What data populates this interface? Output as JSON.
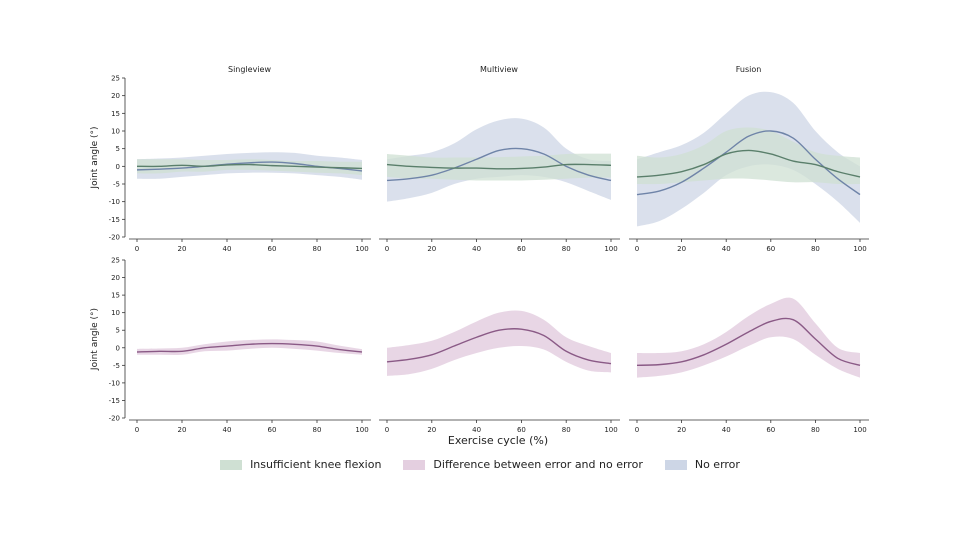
{
  "colors": {
    "green_line": "#5a7f6b",
    "green_fill": "#cfe0d3",
    "purple_line": "#8a5a86",
    "purple_fill": "#e4cfe0",
    "blue_line": "#6f84a8",
    "blue_fill": "#cdd6e6",
    "axis": "#333333"
  },
  "figure": {
    "xlabel": "Exercise cycle (%)",
    "ylabel": "Joint angle (°)"
  },
  "legend": [
    {
      "label": "Insufficient knee flexion",
      "color": "#cfe0d3"
    },
    {
      "label": "Difference between error and no error",
      "color": "#e4cfe0"
    },
    {
      "label": "No error",
      "color": "#cdd6e6"
    }
  ],
  "chart_data": [
    {
      "type": "line",
      "panel": "top-left",
      "title": "Singleview",
      "x": [
        0,
        10,
        20,
        30,
        40,
        50,
        60,
        70,
        80,
        90,
        100
      ],
      "xlim": [
        0,
        100
      ],
      "xticks": [
        0,
        20,
        40,
        60,
        80,
        100
      ],
      "ylim": [
        -20,
        25
      ],
      "yticks": [
        -20,
        -15,
        -10,
        -5,
        0,
        5,
        10,
        15,
        20,
        25
      ],
      "ylabel": "Joint angle (°)",
      "series": [
        {
          "role": "no-error",
          "mean": [
            -1,
            -0.8,
            -0.5,
            0,
            0.6,
            1,
            1.2,
            0.8,
            0,
            -0.6,
            -1.3
          ],
          "lower": [
            -3.5,
            -3.5,
            -3,
            -2.5,
            -2,
            -1.8,
            -1.8,
            -2,
            -2.5,
            -3,
            -3.8
          ],
          "upper": [
            2,
            2.2,
            2.5,
            3,
            3.5,
            3.8,
            4,
            3.8,
            3,
            2.5,
            1.8
          ]
        },
        {
          "role": "insufficient-knee-flexion",
          "mean": [
            0,
            0,
            0.3,
            0,
            0.4,
            0.5,
            0.2,
            0,
            -0.2,
            -0.4,
            -0.6
          ],
          "lower": [
            -2,
            -2,
            -1.5,
            -1.5,
            -1,
            -1,
            -1.2,
            -1.5,
            -1.8,
            -2,
            -2.5
          ],
          "upper": [
            2,
            2,
            2,
            1.8,
            1.8,
            2,
            1.8,
            1.5,
            1.5,
            1.3,
            1.3
          ]
        }
      ]
    },
    {
      "type": "line",
      "panel": "top-middle",
      "title": "Multiview",
      "x": [
        0,
        10,
        20,
        30,
        40,
        50,
        60,
        70,
        80,
        90,
        100
      ],
      "xlim": [
        0,
        100
      ],
      "xticks": [
        0,
        20,
        40,
        60,
        80,
        100
      ],
      "ylim": [
        -20,
        25
      ],
      "yticks": [
        -20,
        -15,
        -10,
        -5,
        0,
        5,
        10,
        15,
        20,
        25
      ],
      "series": [
        {
          "role": "no-error",
          "mean": [
            -4,
            -3.5,
            -2.5,
            -0.5,
            2,
            4.5,
            5,
            3.5,
            0,
            -2.5,
            -4
          ],
          "lower": [
            -10,
            -9,
            -7.5,
            -5,
            -3.5,
            -3,
            -2.5,
            -3,
            -4.5,
            -7,
            -9.5
          ],
          "upper": [
            2,
            3,
            4,
            6.5,
            10.5,
            13,
            13.5,
            11,
            5,
            2,
            1.5
          ]
        },
        {
          "role": "insufficient-knee-flexion",
          "mean": [
            0.5,
            0,
            -0.3,
            -0.5,
            -0.5,
            -0.7,
            -0.6,
            -0.2,
            0.5,
            0.5,
            0.3
          ],
          "lower": [
            -3,
            -3.5,
            -3.5,
            -3.8,
            -4,
            -4,
            -4,
            -3.8,
            -3.5,
            -3.2,
            -3.2
          ],
          "upper": [
            3.5,
            3,
            2.5,
            2.5,
            2.5,
            2.6,
            2.8,
            3,
            3.5,
            3.6,
            3.6
          ]
        }
      ]
    },
    {
      "type": "line",
      "panel": "top-right",
      "title": "Fusion",
      "x": [
        0,
        10,
        20,
        30,
        40,
        50,
        60,
        70,
        80,
        90,
        100
      ],
      "xlim": [
        0,
        100
      ],
      "xticks": [
        0,
        20,
        40,
        60,
        80,
        100
      ],
      "ylim": [
        -20,
        25
      ],
      "yticks": [
        -20,
        -15,
        -10,
        -5,
        0,
        5,
        10,
        15,
        20,
        25
      ],
      "series": [
        {
          "role": "no-error",
          "mean": [
            -8,
            -7,
            -4.5,
            -0.5,
            4,
            8.5,
            10,
            8,
            2,
            -3.5,
            -8
          ],
          "lower": [
            -17,
            -15.5,
            -12,
            -7.5,
            -2.5,
            0,
            0.5,
            -1,
            -5,
            -10,
            -16
          ],
          "upper": [
            2,
            4,
            6,
            9.5,
            15,
            20,
            21,
            18,
            10,
            4,
            0
          ]
        },
        {
          "role": "insufficient-knee-flexion",
          "mean": [
            -3,
            -2.5,
            -1.5,
            0.5,
            3.5,
            4.5,
            3.5,
            1.5,
            0.5,
            -1.5,
            -3
          ],
          "lower": [
            -5,
            -5,
            -4.5,
            -4,
            -3.5,
            -3.5,
            -4,
            -4.5,
            -4.5,
            -5,
            -5
          ],
          "upper": [
            3,
            2.5,
            3.5,
            6,
            10,
            11,
            10,
            7,
            4,
            3,
            2.5
          ]
        }
      ]
    },
    {
      "type": "line",
      "panel": "bottom-left",
      "x": [
        0,
        10,
        20,
        30,
        40,
        50,
        60,
        70,
        80,
        90,
        100
      ],
      "xlim": [
        0,
        100
      ],
      "xticks": [
        0,
        20,
        40,
        60,
        80,
        100
      ],
      "ylim": [
        -20,
        25
      ],
      "yticks": [
        -20,
        -15,
        -10,
        -5,
        0,
        5,
        10,
        15,
        20,
        25
      ],
      "ylabel": "Joint angle (°)",
      "series": [
        {
          "role": "difference",
          "mean": [
            -1.2,
            -1,
            -1,
            0,
            0.5,
            1,
            1.2,
            1,
            0.5,
            -0.5,
            -1.2
          ],
          "lower": [
            -2,
            -2,
            -2,
            -1,
            -0.8,
            -0.3,
            0,
            -0.3,
            -0.8,
            -1.5,
            -2
          ],
          "upper": [
            -0.3,
            -0.2,
            0,
            1,
            1.8,
            2.2,
            2.4,
            2.2,
            1.8,
            0.6,
            -0.4
          ]
        }
      ]
    },
    {
      "type": "line",
      "panel": "bottom-middle",
      "x": [
        0,
        10,
        20,
        30,
        40,
        50,
        60,
        70,
        80,
        90,
        100
      ],
      "xlim": [
        0,
        100
      ],
      "xticks": [
        0,
        20,
        40,
        60,
        80,
        100
      ],
      "ylim": [
        -20,
        25
      ],
      "yticks": [
        -20,
        -15,
        -10,
        -5,
        0,
        5,
        10,
        15,
        20,
        25
      ],
      "series": [
        {
          "role": "difference",
          "mean": [
            -4,
            -3.3,
            -2,
            0.5,
            3,
            5,
            5.3,
            3.5,
            -1,
            -3.5,
            -4.5
          ],
          "lower": [
            -8,
            -7.5,
            -6,
            -3.5,
            -1.5,
            0,
            0.5,
            -0.5,
            -4,
            -6.5,
            -7
          ],
          "upper": [
            0,
            0.8,
            2,
            4.5,
            7.5,
            10,
            10.5,
            8,
            3,
            0.5,
            -1.5
          ]
        }
      ]
    },
    {
      "type": "line",
      "panel": "bottom-right",
      "x": [
        0,
        10,
        20,
        30,
        40,
        50,
        60,
        70,
        80,
        90,
        100
      ],
      "xlim": [
        0,
        100
      ],
      "xticks": [
        0,
        20,
        40,
        60,
        80,
        100
      ],
      "ylim": [
        -20,
        25
      ],
      "yticks": [
        -20,
        -15,
        -10,
        -5,
        0,
        5,
        10,
        15,
        20,
        25
      ],
      "series": [
        {
          "role": "difference",
          "mean": [
            -5,
            -4.8,
            -4,
            -2,
            1,
            4.5,
            7.5,
            8,
            2.5,
            -3,
            -5
          ],
          "lower": [
            -8.5,
            -8,
            -7,
            -5,
            -2.5,
            0.5,
            3,
            2.5,
            -2,
            -6,
            -8.5
          ],
          "upper": [
            -1.5,
            -1.5,
            -1,
            1,
            4.5,
            9,
            12.5,
            14,
            7,
            0,
            -1.5
          ]
        }
      ]
    }
  ]
}
